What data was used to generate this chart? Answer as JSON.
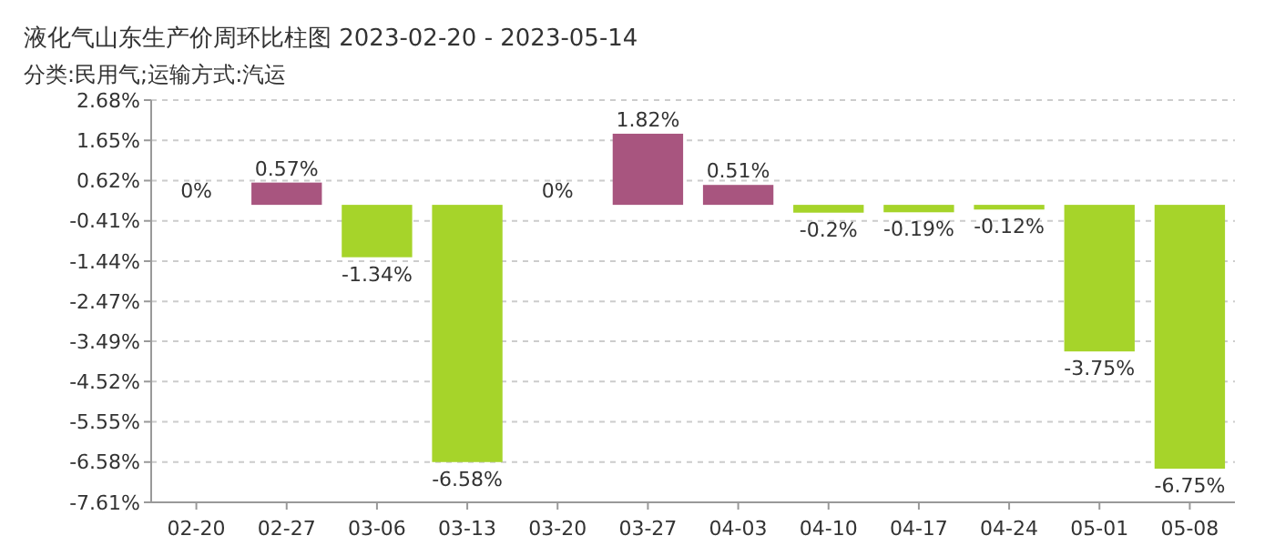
{
  "chart_data": {
    "type": "bar",
    "title": "液化气山东生产价周环比柱图  2023-02-20 - 2023-05-14",
    "subtitle": "分类:民用气;运输方式:汽运",
    "categories": [
      "02-20",
      "02-27",
      "03-06",
      "03-13",
      "03-20",
      "03-27",
      "04-03",
      "04-10",
      "04-17",
      "04-24",
      "05-01",
      "05-08"
    ],
    "values": [
      0,
      0.57,
      -1.34,
      -6.58,
      0,
      1.82,
      0.51,
      -0.2,
      -0.19,
      -0.12,
      -3.75,
      -6.75
    ],
    "colors": [
      "#a8557f",
      "#a8557f",
      "#a6d42a",
      "#a6d42a",
      "#a8557f",
      "#a8557f",
      "#a8557f",
      "#a6d42a",
      "#a6d42a",
      "#a6d42a",
      "#a6d42a",
      "#a6d42a"
    ],
    "value_labels": [
      "0%",
      "0.57%",
      "-1.34%",
      "-6.58%",
      "0%",
      "1.82%",
      "0.51%",
      "-0.2%",
      "-0.19%",
      "-0.12%",
      "-3.75%",
      "-6.75%"
    ],
    "ylim": [
      -7.61,
      2.68
    ],
    "yticks": [
      {
        "value": 2.68,
        "label": "2.68%"
      },
      {
        "value": 1.65,
        "label": "1.65%"
      },
      {
        "value": 0.62,
        "label": "0.62%"
      },
      {
        "value": -0.41,
        "label": "-0.41%"
      },
      {
        "value": -1.44,
        "label": "-1.44%"
      },
      {
        "value": -2.47,
        "label": "-2.47%"
      },
      {
        "value": -3.49,
        "label": "-3.49%"
      },
      {
        "value": -4.52,
        "label": "-4.52%"
      },
      {
        "value": -5.55,
        "label": "-5.55%"
      },
      {
        "value": -6.58,
        "label": "-6.58%"
      },
      {
        "value": -7.61,
        "label": "-7.61%"
      }
    ],
    "grid": "y"
  }
}
